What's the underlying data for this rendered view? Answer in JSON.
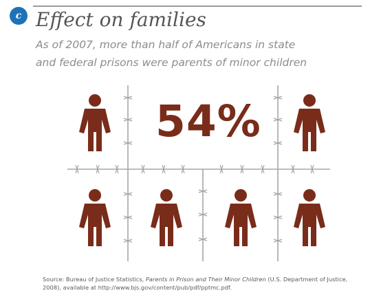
{
  "badge": {
    "letter": "c",
    "color": "#1e73b8"
  },
  "title": "Effect on families",
  "subtitle": {
    "line1": "As of 2007, more than half of Americans in state",
    "line2": "and federal prisons were parents of minor children"
  },
  "statistic": "54%",
  "figure": {
    "icon": "person-icon",
    "icon_color": "#7a2c1a",
    "divider": "barbed-wire",
    "grid": {
      "rows": 2,
      "columns": 4,
      "cells_with_figures": 6,
      "center_cells_merged_for_statistic": true
    }
  },
  "source": {
    "prefix": "Source: Bureau of Justice Statistics, ",
    "report_title": "Parents in Prison and Their Minor Children",
    "suffix": " (U.S. Department of Justice, 2008), available at http://www.bjs.gov/content/pub/pdf/pptmc.pdf."
  }
}
